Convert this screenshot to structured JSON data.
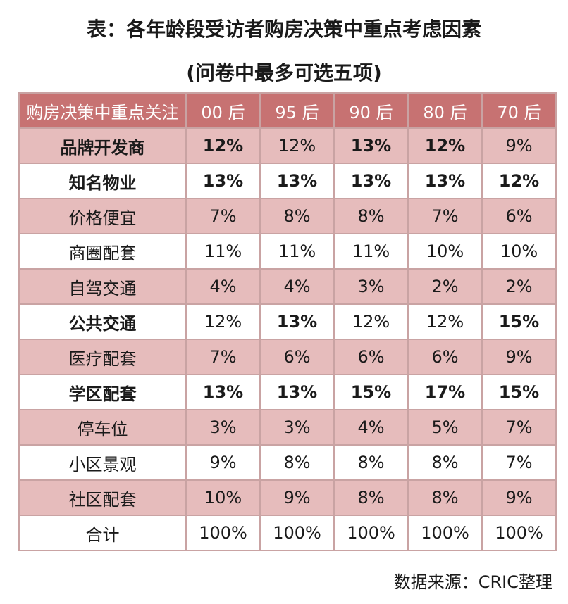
{
  "title": "表：各年龄段受访者购房决策中重点考虑因素",
  "subtitle": "(问卷中最多可选五项)",
  "table": {
    "headers": [
      "购房决策中重点关注",
      "00 后",
      "95 后",
      "90 后",
      "80 后",
      "70 后"
    ],
    "rows": [
      {
        "cells": [
          "品牌开发商",
          "12%",
          "12%",
          "13%",
          "12%",
          "9%"
        ],
        "bold": [
          true,
          true,
          false,
          true,
          true,
          false
        ]
      },
      {
        "cells": [
          "知名物业",
          "13%",
          "13%",
          "13%",
          "13%",
          "12%"
        ],
        "bold": [
          true,
          true,
          true,
          true,
          true,
          true
        ]
      },
      {
        "cells": [
          "价格便宜",
          "7%",
          "8%",
          "8%",
          "7%",
          "6%"
        ],
        "bold": [
          false,
          false,
          false,
          false,
          false,
          false
        ]
      },
      {
        "cells": [
          "商圈配套",
          "11%",
          "11%",
          "11%",
          "10%",
          "10%"
        ],
        "bold": [
          false,
          false,
          false,
          false,
          false,
          false
        ]
      },
      {
        "cells": [
          "自驾交通",
          "4%",
          "4%",
          "3%",
          "2%",
          "2%"
        ],
        "bold": [
          false,
          false,
          false,
          false,
          false,
          false
        ]
      },
      {
        "cells": [
          "公共交通",
          "12%",
          "13%",
          "12%",
          "12%",
          "15%"
        ],
        "bold": [
          true,
          false,
          true,
          false,
          false,
          true
        ]
      },
      {
        "cells": [
          "医疗配套",
          "7%",
          "6%",
          "6%",
          "6%",
          "9%"
        ],
        "bold": [
          false,
          false,
          false,
          false,
          false,
          false
        ]
      },
      {
        "cells": [
          "学区配套",
          "13%",
          "13%",
          "15%",
          "17%",
          "15%"
        ],
        "bold": [
          true,
          true,
          true,
          true,
          true,
          true
        ]
      },
      {
        "cells": [
          "停车位",
          "3%",
          "3%",
          "4%",
          "5%",
          "7%"
        ],
        "bold": [
          false,
          false,
          false,
          false,
          false,
          false
        ]
      },
      {
        "cells": [
          "小区景观",
          "9%",
          "8%",
          "8%",
          "8%",
          "7%"
        ],
        "bold": [
          false,
          false,
          false,
          false,
          false,
          false
        ]
      },
      {
        "cells": [
          "社区配套",
          "10%",
          "9%",
          "8%",
          "8%",
          "9%"
        ],
        "bold": [
          false,
          false,
          false,
          false,
          false,
          false
        ]
      },
      {
        "cells": [
          "合计",
          "100%",
          "100%",
          "100%",
          "100%",
          "100%"
        ],
        "bold": [
          false,
          false,
          false,
          false,
          false,
          false
        ]
      }
    ]
  },
  "source": "数据来源：CRIC整理",
  "colors": {
    "header_bg": "#c77272",
    "row_pink": "#e6bcbc",
    "row_white": "#ffffff",
    "border": "#c9a3a3"
  }
}
